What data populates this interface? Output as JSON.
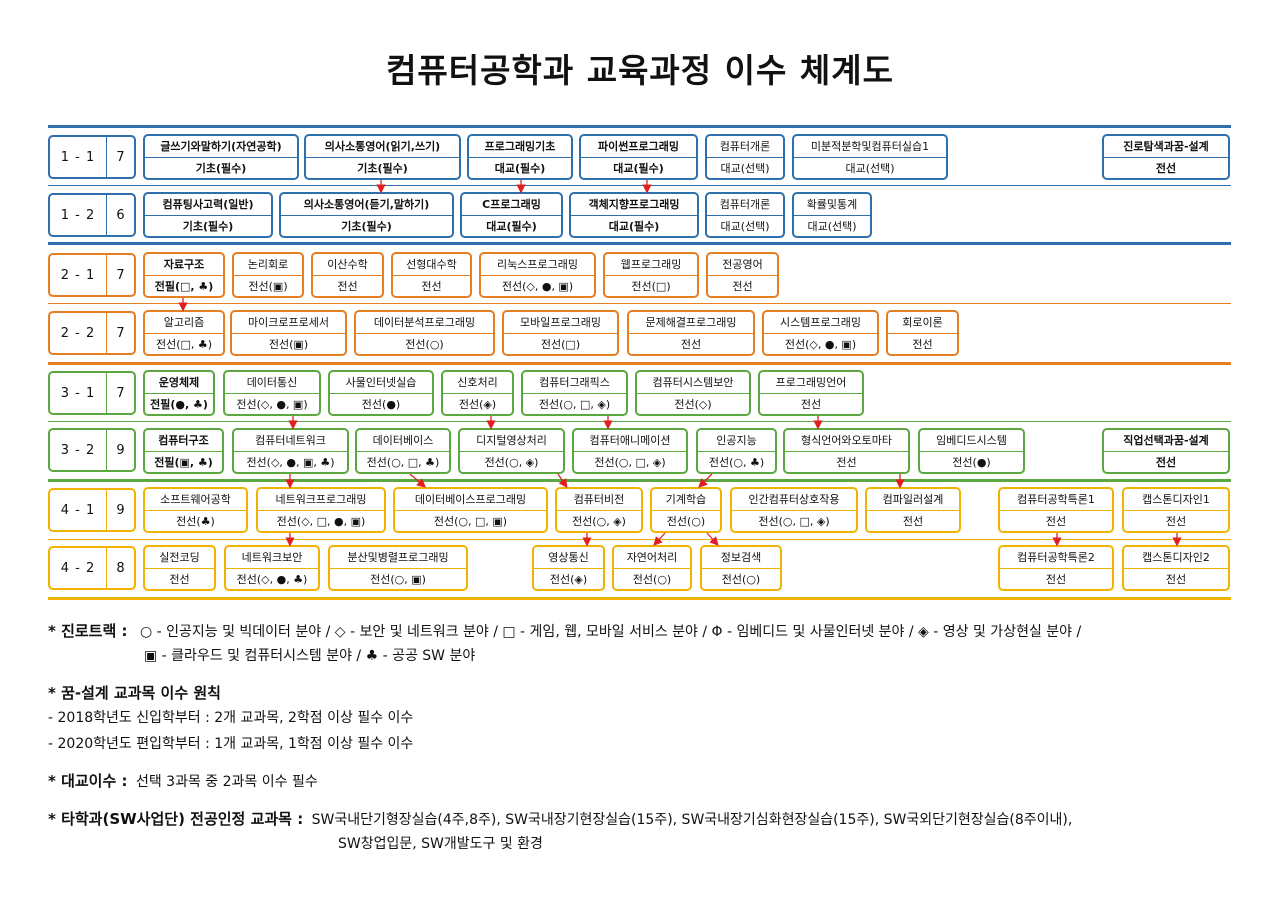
{
  "title": "컴퓨터공학과 교육과정 이수 체계도",
  "colors": {
    "blue": "#2e6fad",
    "orange": "#e67e22",
    "green": "#5aa83f",
    "yellow": "#f0b400",
    "arrow": "#e02020"
  },
  "semesters": [
    {
      "code": "1 - 1",
      "credits": "7"
    },
    {
      "code": "1 - 2",
      "credits": "6"
    },
    {
      "code": "2 - 1",
      "credits": "7"
    },
    {
      "code": "2 - 2",
      "credits": "7"
    },
    {
      "code": "3 - 1",
      "credits": "7"
    },
    {
      "code": "3 - 2",
      "credits": "9"
    },
    {
      "code": "4 - 1",
      "credits": "9"
    },
    {
      "code": "4 - 2",
      "credits": "8"
    }
  ],
  "courses": {
    "r1": [
      {
        "name": "글쓰기와말하기(자연공학)",
        "type": "기초(필수)"
      },
      {
        "name": "의사소통영어(읽기,쓰기)",
        "type": "기초(필수)"
      },
      {
        "name": "프로그래밍기초",
        "type": "대교(필수)"
      },
      {
        "name": "파이썬프로그래밍",
        "type": "대교(필수)"
      },
      {
        "name": "컴퓨터개론",
        "type": "대교(선택)"
      },
      {
        "name": "미분적분학및컴퓨터실습1",
        "type": "대교(선택)"
      },
      {
        "name": "진로탐색과꿈-설계",
        "type": "전선"
      }
    ],
    "r2": [
      {
        "name": "컴퓨팅사고력(일반)",
        "type": "기초(필수)"
      },
      {
        "name": "의사소통영어(듣기,말하기)",
        "type": "기초(필수)"
      },
      {
        "name": "C프로그래밍",
        "type": "대교(필수)"
      },
      {
        "name": "객체지향프로그래밍",
        "type": "대교(필수)"
      },
      {
        "name": "컴퓨터개론",
        "type": "대교(선택)"
      },
      {
        "name": "확률및통계",
        "type": "대교(선택)"
      }
    ],
    "r3": [
      {
        "name": "자료구조",
        "type": "전필(□, ♣)"
      },
      {
        "name": "논리회로",
        "type": "전선(▣)"
      },
      {
        "name": "이산수학",
        "type": "전선"
      },
      {
        "name": "선형대수학",
        "type": "전선"
      },
      {
        "name": "리눅스프로그래밍",
        "type": "전선(◇, ●, ▣)"
      },
      {
        "name": "웹프로그래밍",
        "type": "전선(□)"
      },
      {
        "name": "전공영어",
        "type": "전선"
      }
    ],
    "r4": [
      {
        "name": "알고리즘",
        "type": "전선(□, ♣)"
      },
      {
        "name": "마이크로프로세서",
        "type": "전선(▣)"
      },
      {
        "name": "데이터분석프로그래밍",
        "type": "전선(○)"
      },
      {
        "name": "모바일프로그래밍",
        "type": "전선(□)"
      },
      {
        "name": "문제해결프로그래밍",
        "type": "전선"
      },
      {
        "name": "시스템프로그래밍",
        "type": "전선(◇, ●, ▣)"
      },
      {
        "name": "회로이론",
        "type": "전선"
      }
    ],
    "r5": [
      {
        "name": "운영체제",
        "type": "전필(●, ♣)"
      },
      {
        "name": "데이터통신",
        "type": "전선(◇, ●, ▣)"
      },
      {
        "name": "사물인터넷실습",
        "type": "전선(●)"
      },
      {
        "name": "신호처리",
        "type": "전선(◈)"
      },
      {
        "name": "컴퓨터그래픽스",
        "type": "전선(○, □, ◈)"
      },
      {
        "name": "컴퓨터시스템보안",
        "type": "전선(◇)"
      },
      {
        "name": "프로그래밍언어",
        "type": "전선"
      }
    ],
    "r6": [
      {
        "name": "컴퓨터구조",
        "type": "전필(▣, ♣)"
      },
      {
        "name": "컴퓨터네트워크",
        "type": "전선(◇, ●, ▣, ♣)"
      },
      {
        "name": "데이터베이스",
        "type": "전선(○, □, ♣)"
      },
      {
        "name": "디지털영상처리",
        "type": "전선(○, ◈)"
      },
      {
        "name": "컴퓨터애니메이션",
        "type": "전선(○, □, ◈)"
      },
      {
        "name": "인공지능",
        "type": "전선(○, ♣)"
      },
      {
        "name": "형식언어와오토마타",
        "type": "전선"
      },
      {
        "name": "임베디드시스템",
        "type": "전선(●)"
      },
      {
        "name": "직업선택과꿈-설계",
        "type": "전선"
      }
    ],
    "r7": [
      {
        "name": "소프트웨어공학",
        "type": "전선(♣)"
      },
      {
        "name": "네트워크프로그래밍",
        "type": "전선(◇, □, ●, ▣)"
      },
      {
        "name": "데이터베이스프로그래밍",
        "type": "전선(○, □, ▣)"
      },
      {
        "name": "컴퓨터비전",
        "type": "전선(○, ◈)"
      },
      {
        "name": "기계학습",
        "type": "전선(○)"
      },
      {
        "name": "인간컴퓨터상호작용",
        "type": "전선(○, □, ◈)"
      },
      {
        "name": "컴파일러설계",
        "type": "전선"
      },
      {
        "name": "컴퓨터공학특론1",
        "type": "전선"
      },
      {
        "name": "캡스톤디자인1",
        "type": "전선"
      }
    ],
    "r8": [
      {
        "name": "실전코딩",
        "type": "전선"
      },
      {
        "name": "네트워크보안",
        "type": "전선(◇, ●, ♣)"
      },
      {
        "name": "분산및병렬프로그래밍",
        "type": "전선(○, ▣)"
      },
      {
        "name": "영상통신",
        "type": "전선(◈)"
      },
      {
        "name": "자연어처리",
        "type": "전선(○)"
      },
      {
        "name": "정보검색",
        "type": "전선(○)"
      },
      {
        "name": "컴퓨터공학특론2",
        "type": "전선"
      },
      {
        "name": "캡스톤디자인2",
        "type": "전선"
      }
    ]
  },
  "notes": {
    "track_label": "* 진로트랙 :",
    "track_line1": "○ - 인공지능 및 빅데이터 분야 / ◇ - 보안 및 네트워크 분야 / □ - 게임, 웹, 모바일 서비스 분야 / Φ - 임베디드 및 사물인터넷 분야 / ◈ - 영상 및 가상현실 분야 /",
    "track_line2": "▣ - 클라우드 및 컴퓨터시스템 분야 / ♣ - 공공 SW 분야",
    "design_label": "* 꿈-설계 교과목 이수 원칙",
    "design_line1": "- 2018학년도 신입학부터 : 2개 교과목, 2학점 이상 필수 이수",
    "design_line2": "- 2020학년도 편입학부터 : 1개 교과목, 1학점 이상 필수 이수",
    "liberal_label": "* 대교이수 :",
    "liberal_text": "선택 3과목 중 2과목 이수 필수",
    "other_label": "* 타학과(SW사업단) 전공인정 교과목 :",
    "other_line1": "SW국내단기형장실습(4주,8주), SW국내장기현장실습(15주), SW국내장기심화현장실습(15주), SW국외단기현장실습(8주이내),",
    "other_line2": "SW창업입문, SW개발도구 및 환경"
  }
}
